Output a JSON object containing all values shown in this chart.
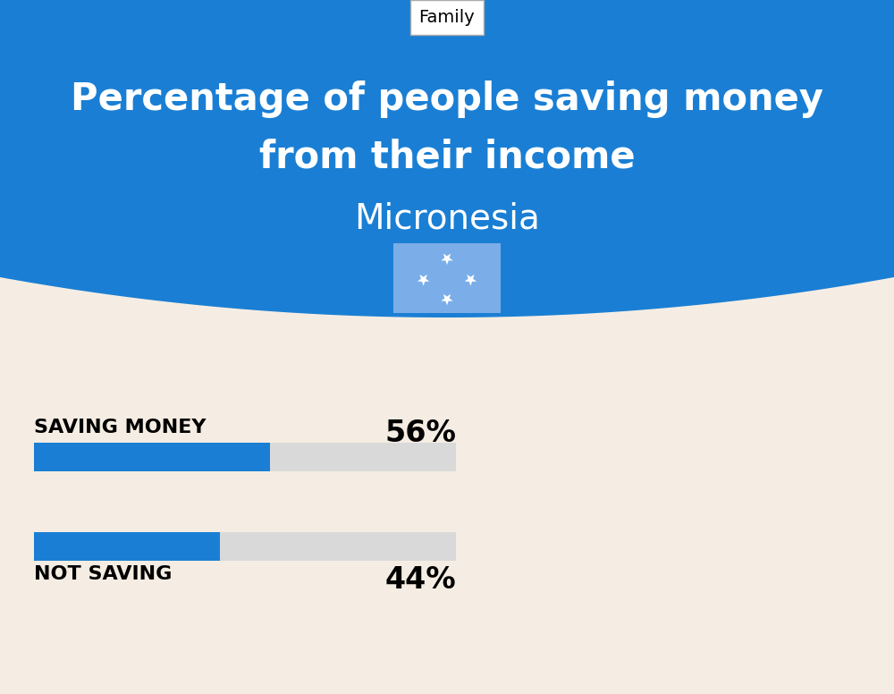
{
  "title_line1": "Percentage of people saving money",
  "title_line2": "from their income",
  "subtitle": "Micronesia",
  "category_label": "Family",
  "bg_color": "#f5ede3",
  "header_bg_color": "#1a7fd4",
  "bar_color": "#1a7fd4",
  "bar_bg_color": "#d9d9d9",
  "saving_label": "SAVING MONEY",
  "saving_value": 56,
  "saving_pct_label": "56%",
  "not_saving_label": "NOT SAVING",
  "not_saving_value": 44,
  "not_saving_pct_label": "44%",
  "title_fontsize": 30,
  "subtitle_fontsize": 28,
  "label_fontsize": 16,
  "pct_fontsize": 24,
  "bar_label_fontsize": 16,
  "flag_color": "#7baee8",
  "flag_star_color": "#ffffff"
}
